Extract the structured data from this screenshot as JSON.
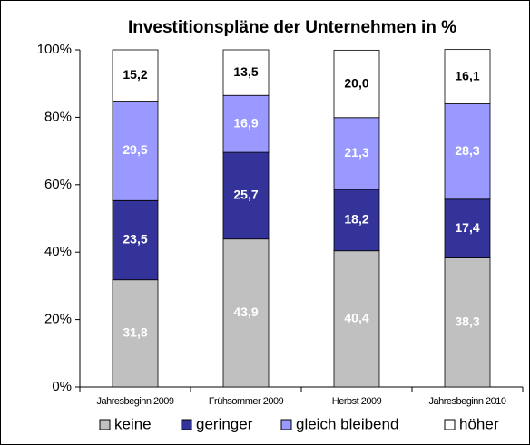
{
  "chart_data": {
    "type": "stacked_bar",
    "title": "Investitionspläne der Unternehmen in %",
    "categories": [
      "Jahresbeginn 2009",
      "Frühsommer 2009",
      "Herbst 2009",
      "Jahresbeginn 2010"
    ],
    "series": [
      {
        "name": "keine",
        "color": "#c0c0c0",
        "values": [
          31.8,
          43.9,
          40.4,
          38.3
        ],
        "value_labels": [
          "31,8",
          "43,9",
          "40,4",
          "38,3"
        ]
      },
      {
        "name": "geringer",
        "color": "#333399",
        "values": [
          23.5,
          25.7,
          18.2,
          17.4
        ],
        "value_labels": [
          "23,5",
          "25,7",
          "18,2",
          "17,4"
        ]
      },
      {
        "name": "gleich bleibend",
        "color": "#9999ff",
        "values": [
          29.5,
          16.9,
          21.3,
          28.3
        ],
        "value_labels": [
          "29,5",
          "16,9",
          "21,3",
          "28,3"
        ]
      },
      {
        "name": "höher",
        "color": "#ffffff",
        "values": [
          15.2,
          13.5,
          20.0,
          16.1
        ],
        "value_labels": [
          "15,2",
          "13,5",
          "20,0",
          "16,1"
        ]
      }
    ],
    "ylim": [
      0,
      100
    ],
    "yticks": [
      {
        "value": 0,
        "label": "0%"
      },
      {
        "value": 20,
        "label": "20%"
      },
      {
        "value": 40,
        "label": "40%"
      },
      {
        "value": 60,
        "label": "60%"
      },
      {
        "value": 80,
        "label": "80%"
      },
      {
        "value": 100,
        "label": "100%"
      }
    ],
    "legend": "bottom"
  }
}
